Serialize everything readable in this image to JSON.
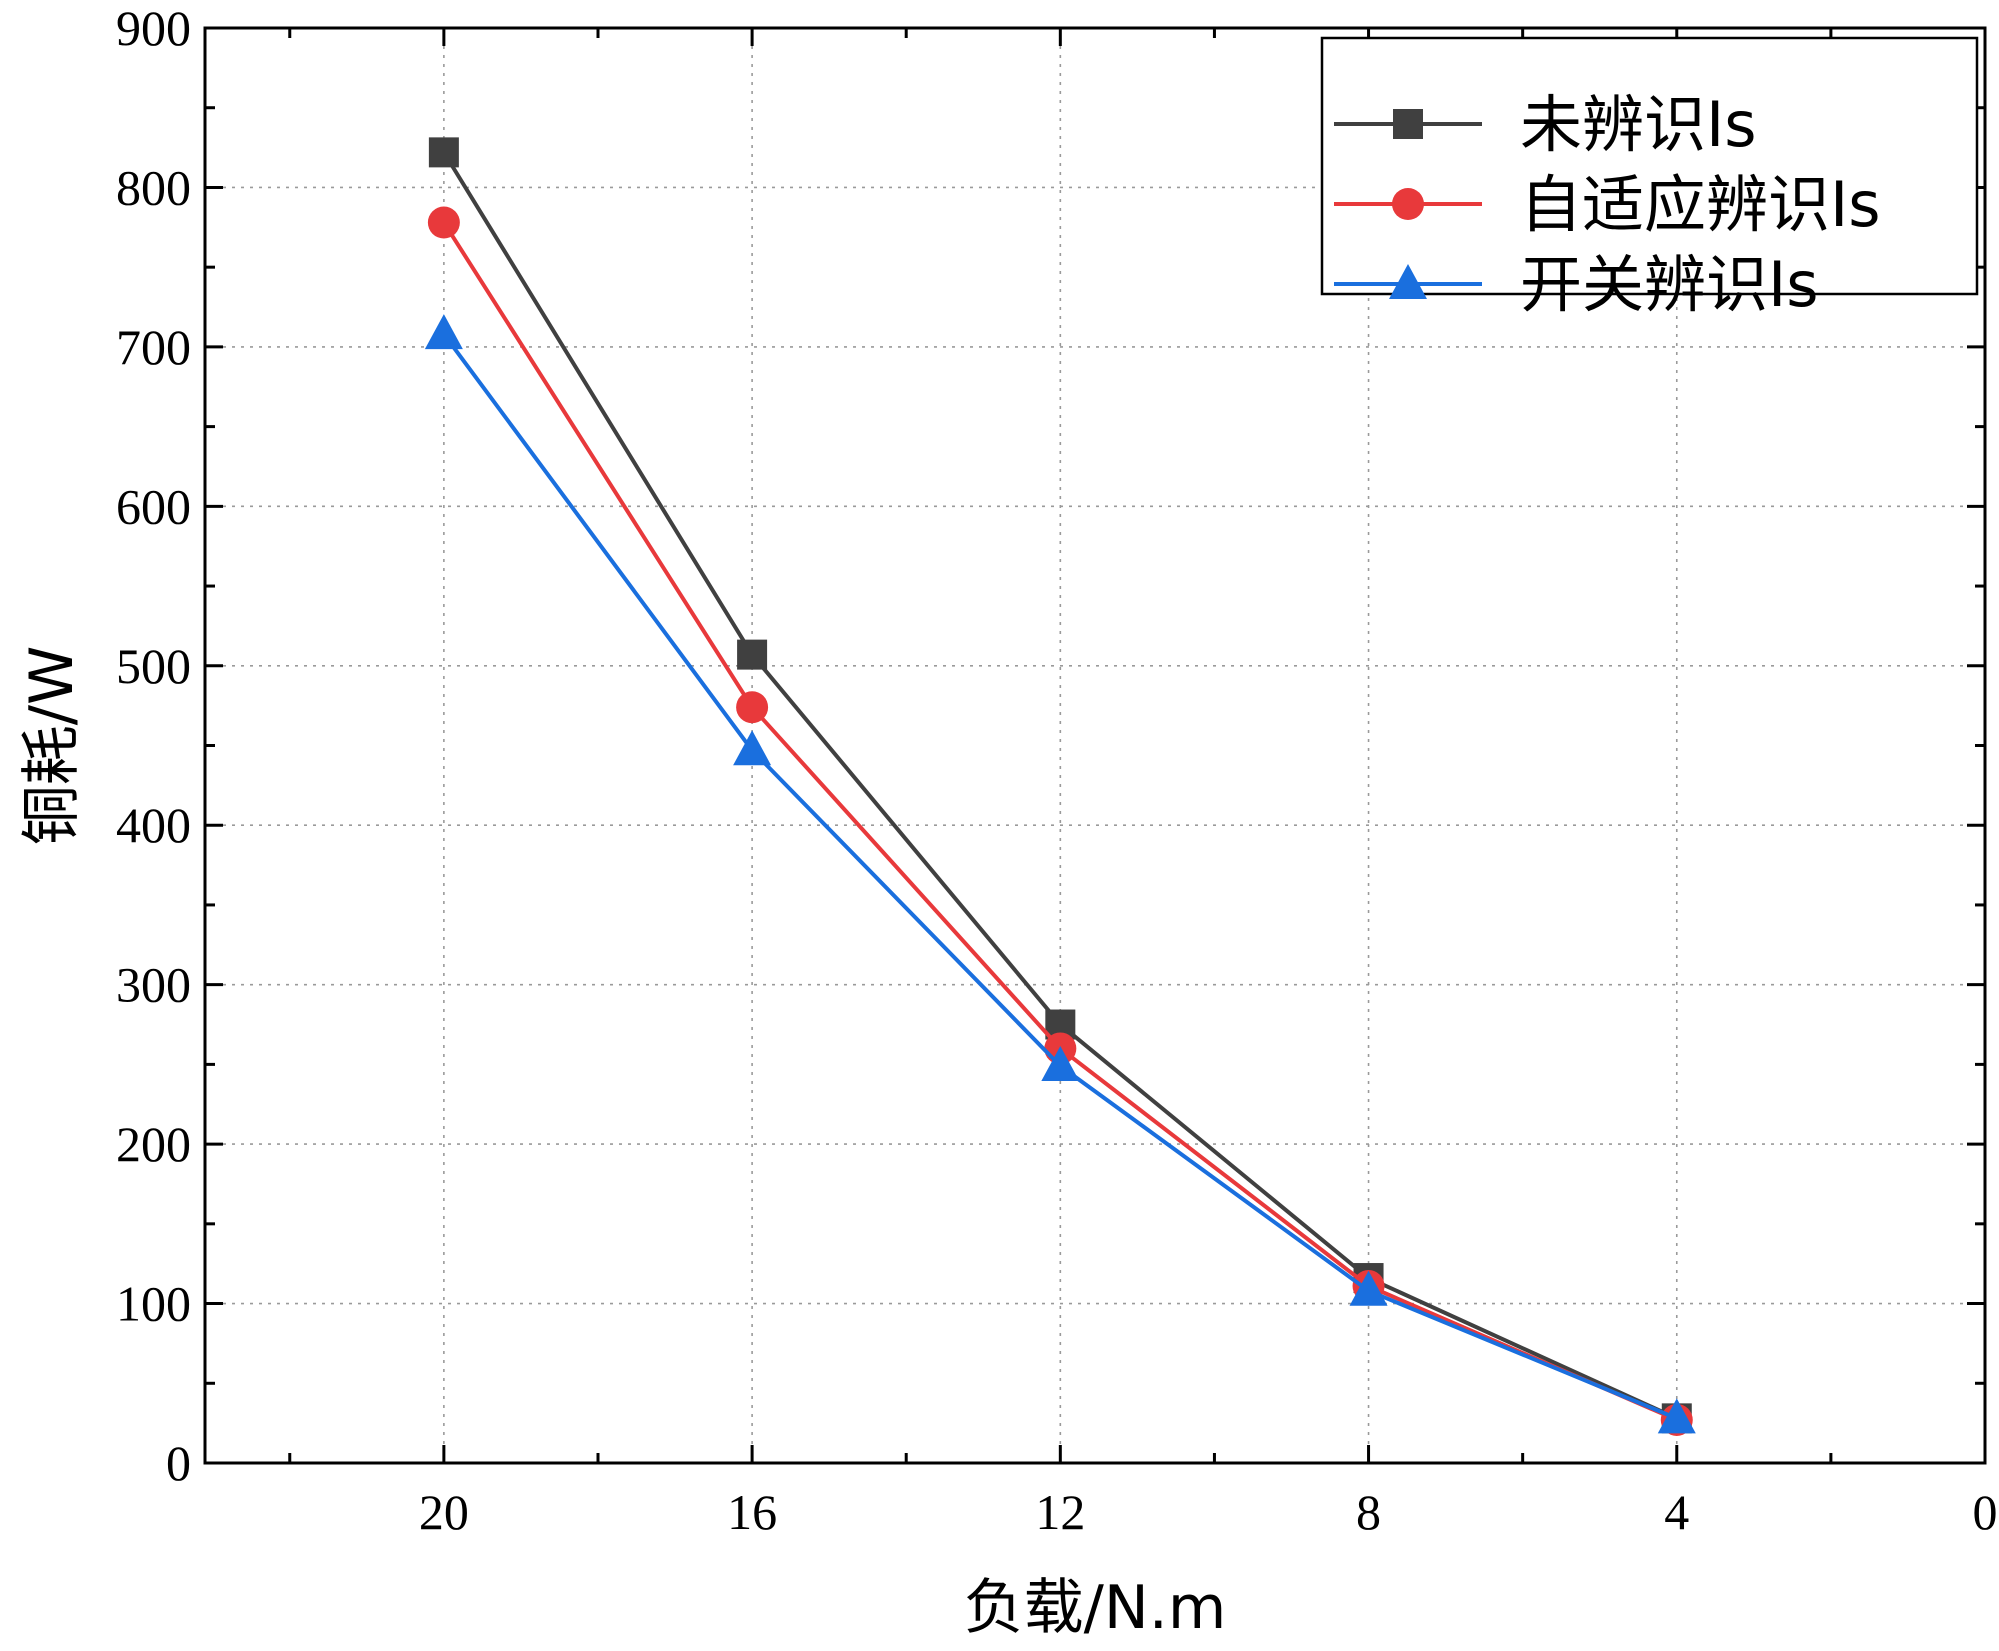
{
  "chart_data": {
    "type": "line",
    "xlabel": "负载/N.m",
    "ylabel": "铜耗/W",
    "xlim": [
      23.1,
      0
    ],
    "ylim": [
      0,
      900
    ],
    "x_ticks": [
      20,
      16,
      12,
      8,
      4,
      0
    ],
    "y_ticks": [
      0,
      100,
      200,
      300,
      400,
      500,
      600,
      700,
      800,
      900
    ],
    "grid": true,
    "legend_position": "top-right",
    "x": [
      20,
      16,
      12,
      8,
      4
    ],
    "series": [
      {
        "name": "未辨识Is",
        "marker": "square",
        "color": "#404040",
        "values": [
          822,
          507,
          275,
          116,
          28
        ]
      },
      {
        "name": "自适应辨识Is",
        "marker": "circle",
        "color": "#e8393b",
        "values": [
          778,
          474,
          260,
          111,
          27
        ]
      },
      {
        "name": "开关辨识Is",
        "marker": "triangle",
        "color": "#1a6fde",
        "values": [
          708,
          447,
          249,
          108,
          28
        ]
      }
    ]
  }
}
